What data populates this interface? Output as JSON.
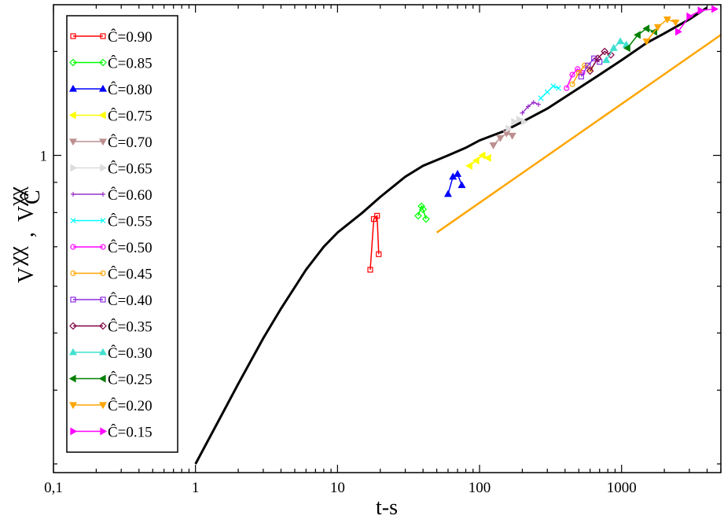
{
  "chart_data": {
    "type": "line",
    "title": "",
    "xlabel": "t-s",
    "ylabel": {
      "main": "V",
      "main_sup": "χχ",
      "separator": ",",
      "second": "V",
      "second_sup": "χχ",
      "second_sub": "Ĉ"
    },
    "xscale": "log",
    "yscale": "log",
    "xlim": [
      0.1,
      5000
    ],
    "ylim": [
      0.29,
      1.8
    ],
    "xticks": [
      {
        "value": 0.1,
        "label": "0,1"
      },
      {
        "value": 1,
        "label": "1"
      },
      {
        "value": 10,
        "label": "10"
      },
      {
        "value": 100,
        "label": "100"
      },
      {
        "value": 1000,
        "label": "1000"
      }
    ],
    "yticks": [
      {
        "value": 1,
        "label": "1"
      }
    ],
    "legend_position": "left",
    "legend_prefix": "Ĉ=",
    "series": [
      {
        "name": "0.90",
        "color": "#ff0000",
        "marker": "square",
        "x": [
          17,
          18,
          19,
          19.5
        ],
        "y": [
          0.64,
          0.78,
          0.79,
          0.68
        ]
      },
      {
        "name": "0.85",
        "color": "#00ff00",
        "marker": "diamond",
        "x": [
          37,
          39,
          40,
          42
        ],
        "y": [
          0.79,
          0.82,
          0.81,
          0.78
        ]
      },
      {
        "name": "0.80",
        "color": "#0000ff",
        "marker": "triangle-up",
        "x": [
          60,
          65,
          70,
          75
        ],
        "y": [
          0.86,
          0.92,
          0.93,
          0.89
        ]
      },
      {
        "name": "0.75",
        "color": "#ffff00",
        "marker": "triangle-left",
        "x": [
          85,
          95,
          105,
          115
        ],
        "y": [
          0.96,
          0.98,
          1.0,
          0.99
        ]
      },
      {
        "name": "0.70",
        "color": "#bc8f8f",
        "marker": "triangle-down",
        "x": [
          125,
          140,
          155,
          170
        ],
        "y": [
          1.04,
          1.07,
          1.09,
          1.08
        ]
      },
      {
        "name": "0.65",
        "color": "#dcdcdc",
        "marker": "triangle-right",
        "x": [
          160,
          175,
          190,
          205
        ],
        "y": [
          1.11,
          1.14,
          1.15,
          1.14
        ]
      },
      {
        "name": "0.60",
        "color": "#9932cc",
        "marker": "plus",
        "x": [
          200,
          220,
          240,
          260
        ],
        "y": [
          1.18,
          1.21,
          1.23,
          1.22
        ]
      },
      {
        "name": "0.55",
        "color": "#00ffff",
        "marker": "x",
        "x": [
          270,
          300,
          330,
          360
        ],
        "y": [
          1.25,
          1.28,
          1.31,
          1.3
        ]
      },
      {
        "name": "0.50",
        "color": "#ff00ff",
        "marker": "circle",
        "x": [
          410,
          450,
          490,
          530
        ],
        "y": [
          1.3,
          1.37,
          1.4,
          1.38
        ]
      },
      {
        "name": "0.45",
        "color": "#ffa500",
        "marker": "circle",
        "x": [
          450,
          500,
          550,
          600
        ],
        "y": [
          1.32,
          1.38,
          1.42,
          1.4
        ]
      },
      {
        "name": "0.40",
        "color": "#8b2be2",
        "marker": "square",
        "x": [
          520,
          580,
          640,
          700
        ],
        "y": [
          1.36,
          1.42,
          1.46,
          1.44
        ]
      },
      {
        "name": "0.35",
        "color": "#800040",
        "marker": "diamond",
        "x": [
          600,
          680,
          760,
          840
        ],
        "y": [
          1.39,
          1.46,
          1.5,
          1.48
        ]
      },
      {
        "name": "0.30",
        "color": "#40e0d0",
        "marker": "triangle-up",
        "x": [
          780,
          880,
          980,
          1080
        ],
        "y": [
          1.45,
          1.52,
          1.56,
          1.54
        ]
      },
      {
        "name": "0.25",
        "color": "#008000",
        "marker": "triangle-left",
        "x": [
          1100,
          1300,
          1500,
          1700
        ],
        "y": [
          1.52,
          1.6,
          1.64,
          1.62
        ]
      },
      {
        "name": "0.20",
        "color": "#ffa500",
        "marker": "triangle-down",
        "x": [
          1500,
          1800,
          2100,
          2400
        ],
        "y": [
          1.56,
          1.65,
          1.7,
          1.68
        ]
      },
      {
        "name": "0.15",
        "color": "#ff00ff",
        "marker": "triangle-right",
        "x": [
          2500,
          3000,
          3600,
          4500
        ],
        "y": [
          1.62,
          1.72,
          1.76,
          1.77
        ]
      }
    ],
    "reference_curve": {
      "color": "#000000",
      "x": [
        1,
        1.5,
        2,
        3,
        4,
        6,
        8,
        10,
        15,
        20,
        30,
        40,
        60,
        80,
        100,
        150,
        200,
        300,
        500,
        700,
        1000,
        1500,
        2000,
        3000,
        4000
      ],
      "y": [
        0.3,
        0.36,
        0.41,
        0.49,
        0.55,
        0.64,
        0.7,
        0.74,
        0.8,
        0.85,
        0.92,
        0.96,
        1.0,
        1.03,
        1.06,
        1.1,
        1.14,
        1.2,
        1.3,
        1.37,
        1.45,
        1.55,
        1.61,
        1.7,
        1.78
      ]
    },
    "guide_line": {
      "color": "#ffa500",
      "x": [
        50,
        5000
      ],
      "y": [
        0.74,
        1.6
      ]
    }
  }
}
